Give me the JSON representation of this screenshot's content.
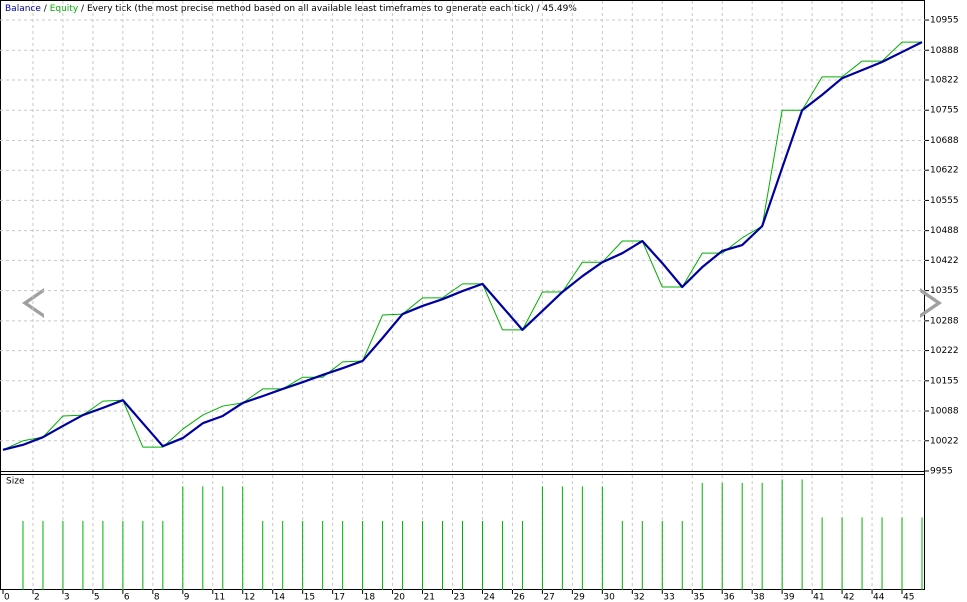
{
  "chart_data": {
    "type": "line",
    "separator": "/",
    "subtitle": "/ Every tick (the most precise method based on all available least timeframes to generate each tick) / 45.49%",
    "x": [
      0,
      1,
      2,
      3,
      4,
      5,
      6,
      7,
      8,
      9,
      10,
      11,
      12,
      13,
      14,
      15,
      16,
      17,
      18,
      19,
      20,
      21,
      22,
      23,
      24,
      25,
      26,
      27,
      28,
      29,
      30,
      31,
      32,
      33,
      34,
      35,
      36,
      37,
      38,
      39,
      40,
      41,
      42,
      43,
      44,
      45,
      46
    ],
    "series": [
      {
        "name": "Balance",
        "color": "#0000a0",
        "values": [
          10002,
          10013,
          10030,
          10055,
          10079,
          10095,
          10112,
          10061,
          10010,
          10028,
          10061,
          10077,
          10106,
          10121,
          10137,
          10152,
          10168,
          10183,
          10199,
          10250,
          10303,
          10321,
          10336,
          10354,
          10370,
          10319,
          10268,
          10310,
          10352,
          10387,
          10418,
          10438,
          10465,
          10416,
          10363,
          10407,
          10443,
          10456,
          10498,
          10627,
          10755,
          10789,
          10826,
          10844,
          10862,
          10884,
          10906
        ]
      },
      {
        "name": "Equity",
        "color": "#00b000",
        "values": [
          10002,
          10022,
          10030,
          10077,
          10079,
          10110,
          10112,
          10008,
          10008,
          10048,
          10079,
          10099,
          10106,
          10137,
          10137,
          10163,
          10163,
          10197,
          10199,
          10301,
          10303,
          10339,
          10339,
          10370,
          10370,
          10268,
          10268,
          10352,
          10352,
          10418,
          10418,
          10465,
          10465,
          10363,
          10363,
          10438,
          10438,
          10472,
          10498,
          10755,
          10755,
          10829,
          10829,
          10864,
          10864,
          10906,
          10906
        ]
      }
    ],
    "xlim": [
      0,
      46
    ],
    "xticks": [
      0,
      {
        "value": 1.5,
        "label": "2"
      },
      3,
      {
        "value": 4.5,
        "label": "5"
      },
      6,
      {
        "value": 7.5,
        "label": "8"
      },
      9,
      {
        "value": 10.5,
        "label": "11"
      },
      12,
      {
        "value": 13.5,
        "label": "14"
      },
      15,
      {
        "value": 16.5,
        "label": "17"
      },
      18,
      {
        "value": 19.5,
        "label": "20"
      },
      21,
      {
        "value": 22.5,
        "label": "23"
      },
      24,
      {
        "value": 25.5,
        "label": "26"
      },
      27,
      {
        "value": 28.5,
        "label": "29"
      },
      30,
      {
        "value": 31.5,
        "label": "32"
      },
      33,
      {
        "value": 34.5,
        "label": "35"
      },
      36,
      {
        "value": 37.5,
        "label": "38"
      },
      39,
      {
        "value": 40.5,
        "label": "41"
      },
      42,
      {
        "value": 43.5,
        "label": "44"
      },
      45
    ],
    "ylim": [
      9955,
      10995
    ],
    "yticks": [
      9955,
      10022,
      10088,
      10155,
      10222,
      10288,
      10355,
      10422,
      10488,
      10555,
      10622,
      10688,
      10755,
      10822,
      10888,
      10955
    ],
    "grid": true,
    "size_panel": {
      "label": "Size",
      "color": "#00b000",
      "ylim": [
        0,
        0.33
      ],
      "values": [
        null,
        0.2,
        0.2,
        0.2,
        0.2,
        0.2,
        0.2,
        0.2,
        0.2,
        0.3,
        0.3,
        0.3,
        0.3,
        0.2,
        0.2,
        0.2,
        0.2,
        0.2,
        0.2,
        0.2,
        0.2,
        0.2,
        0.2,
        0.2,
        0.2,
        0.2,
        0.2,
        0.3,
        0.3,
        0.3,
        0.3,
        0.2,
        0.2,
        0.2,
        0.2,
        0.31,
        0.31,
        0.31,
        0.31,
        0.32,
        0.32,
        0.21,
        0.21,
        0.21,
        0.21,
        0.21,
        0.21
      ]
    }
  }
}
